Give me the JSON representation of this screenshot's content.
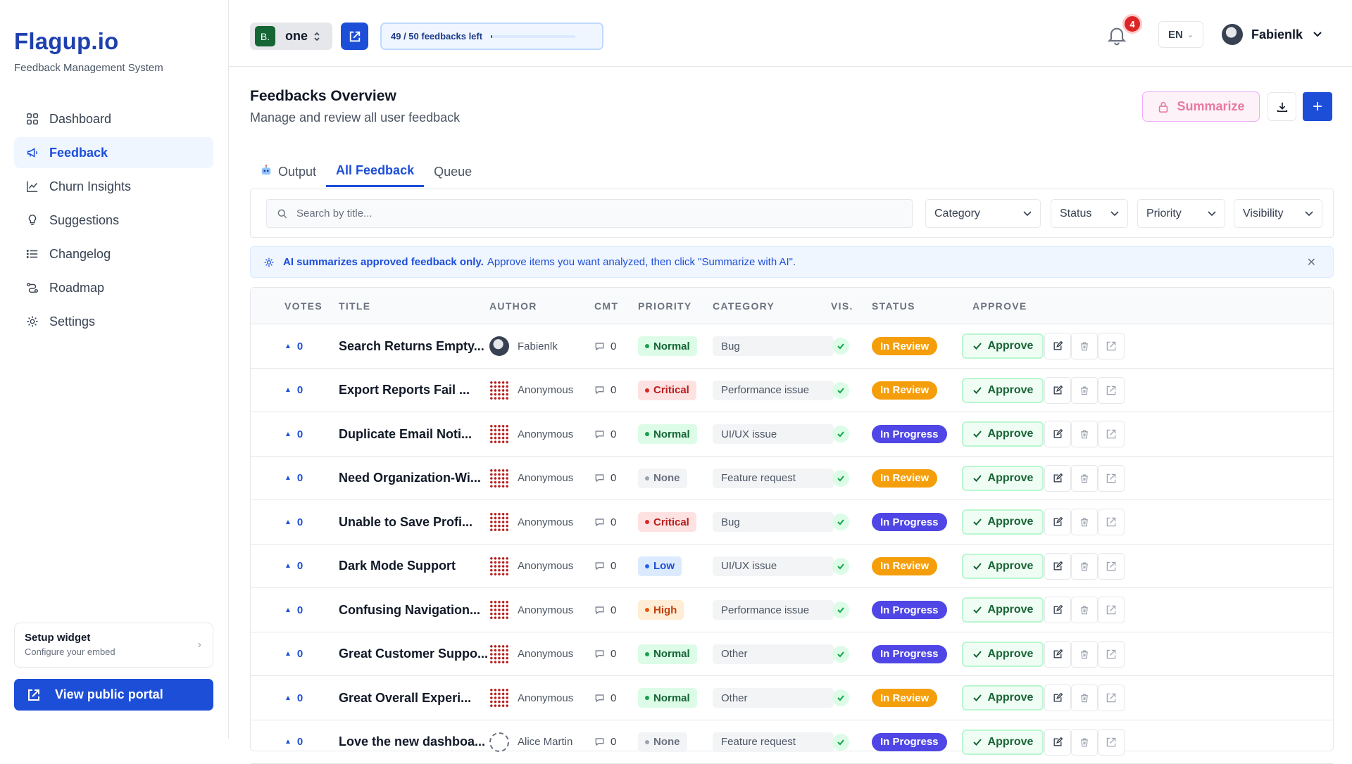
{
  "app": {
    "brand": "Flagup.io",
    "brand_sub": "Feedback Management System"
  },
  "sidebar": {
    "items": [
      {
        "label": "Dashboard",
        "icon": "grid-icon",
        "active": false
      },
      {
        "label": "Feedback",
        "icon": "megaphone-icon",
        "active": true
      },
      {
        "label": "Churn Insights",
        "icon": "chart-icon",
        "active": false
      },
      {
        "label": "Suggestions",
        "icon": "lightbulb-icon",
        "active": false
      },
      {
        "label": "Changelog",
        "icon": "list-icon",
        "active": false
      },
      {
        "label": "Roadmap",
        "icon": "route-icon",
        "active": false
      },
      {
        "label": "Settings",
        "icon": "gear-icon",
        "active": false
      }
    ],
    "setup": {
      "title": "Setup widget",
      "sub": "Configure your embed"
    },
    "portal_label": "View public portal"
  },
  "topbar": {
    "project_initial": "B.",
    "project_name": "one",
    "quota_text": "49 / 50 feedbacks left",
    "quota_used_fraction": 0.02,
    "notifications": "4",
    "language": "EN",
    "user_name": "Fabienlk"
  },
  "page": {
    "title": "Feedbacks Overview",
    "subtitle": "Manage and review all user feedback",
    "summarize_label": "Summarize"
  },
  "tabs": [
    {
      "label": "Output",
      "icon": "robot-icon",
      "active": false
    },
    {
      "label": "All Feedback",
      "active": true
    },
    {
      "label": "Queue",
      "active": false
    }
  ],
  "filters": {
    "search_placeholder": "Search by title...",
    "dropdowns": [
      "Category",
      "Status",
      "Priority",
      "Visibility"
    ]
  },
  "banner": {
    "bold": "AI summarizes approved feedback only.",
    "text": "Approve items you want analyzed, then click \"Summarize with AI\"."
  },
  "table": {
    "headers": [
      "VOTES",
      "TITLE",
      "AUTHOR",
      "CMT",
      "PRIORITY",
      "CATEGORY",
      "VIS.",
      "STATUS",
      "APPROVE"
    ],
    "approve_label": "Approve",
    "rows": [
      {
        "votes": "0",
        "title": "Search Returns Empty...",
        "author": "Fabienlk",
        "avatar": "user",
        "comments": "0",
        "priority": "Normal",
        "category": "Bug",
        "status": "In Review"
      },
      {
        "votes": "0",
        "title": "Export Reports Fail ...",
        "author": "Anonymous",
        "avatar": "anon",
        "comments": "0",
        "priority": "Critical",
        "category": "Performance issue",
        "status": "In Review"
      },
      {
        "votes": "0",
        "title": "Duplicate Email Noti...",
        "author": "Anonymous",
        "avatar": "anon",
        "comments": "0",
        "priority": "Normal",
        "category": "UI/UX issue",
        "status": "In Progress"
      },
      {
        "votes": "0",
        "title": "Need Organization-Wi...",
        "author": "Anonymous",
        "avatar": "anon",
        "comments": "0",
        "priority": "None",
        "category": "Feature request",
        "status": "In Review"
      },
      {
        "votes": "0",
        "title": "Unable to Save Profi...",
        "author": "Anonymous",
        "avatar": "anon",
        "comments": "0",
        "priority": "Critical",
        "category": "Bug",
        "status": "In Progress"
      },
      {
        "votes": "0",
        "title": "Dark Mode Support",
        "author": "Anonymous",
        "avatar": "anon",
        "comments": "0",
        "priority": "Low",
        "category": "UI/UX issue",
        "status": "In Review"
      },
      {
        "votes": "0",
        "title": "Confusing Navigation...",
        "author": "Anonymous",
        "avatar": "anon",
        "comments": "0",
        "priority": "High",
        "category": "Performance issue",
        "status": "In Progress"
      },
      {
        "votes": "0",
        "title": "Great Customer Suppo...",
        "author": "Anonymous",
        "avatar": "anon",
        "comments": "0",
        "priority": "Normal",
        "category": "Other",
        "status": "In Progress"
      },
      {
        "votes": "0",
        "title": "Great Overall Experi...",
        "author": "Anonymous",
        "avatar": "anon",
        "comments": "0",
        "priority": "Normal",
        "category": "Other",
        "status": "In Review"
      },
      {
        "votes": "0",
        "title": "Love the new dashboa...",
        "author": "Alice Martin",
        "avatar": "alice",
        "comments": "0",
        "priority": "None",
        "category": "Feature request",
        "status": "In Progress"
      }
    ]
  },
  "colors": {
    "priority": {
      "Normal": {
        "bg": "#dcfce7",
        "fg": "#166534",
        "dot": "#16a34a"
      },
      "Critical": {
        "bg": "#fee2e2",
        "fg": "#b91c1c",
        "dot": "#dc2626"
      },
      "None": {
        "bg": "#f3f4f6",
        "fg": "#6b7280",
        "dot": "#9ca3af"
      },
      "Low": {
        "bg": "#dbeafe",
        "fg": "#1d4ed8",
        "dot": "#2563eb"
      },
      "High": {
        "bg": "#ffedd5",
        "fg": "#c2410c",
        "dot": "#ea580c"
      }
    },
    "status": {
      "In Review": "#f59e0b",
      "In Progress": "#4f46e5"
    }
  }
}
